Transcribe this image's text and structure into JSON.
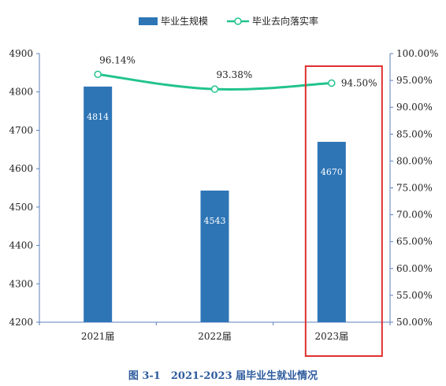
{
  "chart_data": {
    "type": "bar",
    "categories": [
      "2021届",
      "2022届",
      "2023届"
    ],
    "series": [
      {
        "name": "毕业生规模",
        "kind": "bar",
        "axis": "left",
        "color": "#2e75b6",
        "values": [
          4814,
          4543,
          4670
        ]
      },
      {
        "name": "毕业去向落实率",
        "kind": "line",
        "axis": "right",
        "color": "#22c38e",
        "values": [
          96.14,
          93.38,
          94.5
        ]
      }
    ],
    "bar_labels": [
      "4814",
      "4543",
      "4670"
    ],
    "line_labels": [
      "96.14%",
      "93.38%",
      "94.50%"
    ],
    "y_left": {
      "range": [
        4200,
        4900
      ],
      "ticks": [
        "4200",
        "4300",
        "4400",
        "4500",
        "4600",
        "4700",
        "4800",
        "4900"
      ]
    },
    "y_right": {
      "range": [
        50,
        100
      ],
      "ticks": [
        "50.00%",
        "55.00%",
        "60.00%",
        "65.00%",
        "70.00%",
        "75.00%",
        "80.00%",
        "85.00%",
        "90.00%",
        "95.00%",
        "100.00%"
      ]
    },
    "legend_position": "top-center",
    "grid": false,
    "highlight": {
      "category_index": 2,
      "color": "#e03030"
    }
  },
  "caption": "图 3-1　2021-2023 届毕业生就业情况"
}
